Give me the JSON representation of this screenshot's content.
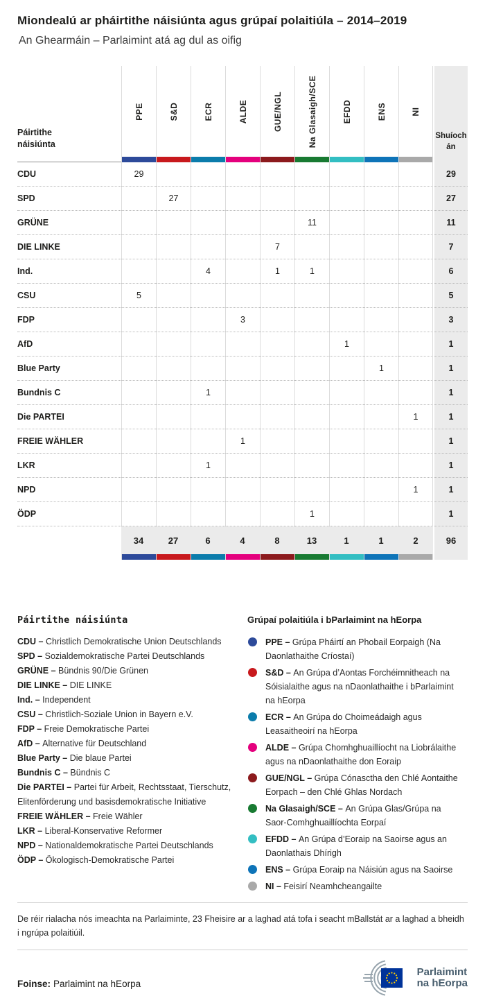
{
  "header": {
    "title": "Miondealú ar pháirtithe náisiúnta agus grúpaí polaitiúla – 2014–2019",
    "subtitle": "An Ghearmáin – Parlaimint atá ag dul as oifig"
  },
  "ui": {
    "separator": "–"
  },
  "chart_data": {
    "type": "table",
    "title": "Miondealú ar pháirtithe náisiúnta agus grúpaí polaitiúla – 2014–2019",
    "subtitle": "An Ghearmáin – Parlaimint atá ag dul as oifig",
    "row_header": "Páirtithe náisiúnta",
    "seats_header": "Shuíochán",
    "groups": [
      {
        "code": "PPE",
        "color": "#2d4a9a"
      },
      {
        "code": "S&D",
        "color": "#c8191d"
      },
      {
        "code": "ECR",
        "color": "#0b7cab"
      },
      {
        "code": "ALDE",
        "color": "#e4007d"
      },
      {
        "code": "GUE/NGL",
        "color": "#8c1a1d"
      },
      {
        "code": "Na Glasaigh/SCE",
        "color": "#187a32"
      },
      {
        "code": "EFDD",
        "color": "#33bec2"
      },
      {
        "code": "ENS",
        "color": "#0e74b8"
      },
      {
        "code": "NI",
        "color": "#a9a9a9"
      }
    ],
    "rows": [
      {
        "party": "CDU",
        "seats": {
          "PPE": 29
        },
        "total": 29
      },
      {
        "party": "SPD",
        "seats": {
          "S&D": 27
        },
        "total": 27
      },
      {
        "party": "GRÜNE",
        "seats": {
          "Na Glasaigh/SCE": 11
        },
        "total": 11
      },
      {
        "party": "DIE LINKE",
        "seats": {
          "GUE/NGL": 7
        },
        "total": 7
      },
      {
        "party": "Ind.",
        "seats": {
          "ECR": 4,
          "GUE/NGL": 1,
          "Na Glasaigh/SCE": 1
        },
        "total": 6
      },
      {
        "party": "CSU",
        "seats": {
          "PPE": 5
        },
        "total": 5
      },
      {
        "party": "FDP",
        "seats": {
          "ALDE": 3
        },
        "total": 3
      },
      {
        "party": "AfD",
        "seats": {
          "EFDD": 1
        },
        "total": 1
      },
      {
        "party": "Blue Party",
        "seats": {
          "ENS": 1
        },
        "total": 1
      },
      {
        "party": "Bundnis C",
        "seats": {
          "ECR": 1
        },
        "total": 1
      },
      {
        "party": "Die PARTEI",
        "seats": {
          "NI": 1
        },
        "total": 1
      },
      {
        "party": "FREIE WÄHLER",
        "seats": {
          "ALDE": 1
        },
        "total": 1
      },
      {
        "party": "LKR",
        "seats": {
          "ECR": 1
        },
        "total": 1
      },
      {
        "party": "NPD",
        "seats": {
          "NI": 1
        },
        "total": 1
      },
      {
        "party": "ÖDP",
        "seats": {
          "Na Glasaigh/SCE": 1
        },
        "total": 1
      }
    ],
    "totals": {
      "PPE": 34,
      "S&D": 27,
      "ECR": 6,
      "ALDE": 4,
      "GUE/NGL": 8,
      "Na Glasaigh/SCE": 13,
      "EFDD": 1,
      "ENS": 1,
      "NI": 2
    },
    "grand_total": 96
  },
  "legend_parties": {
    "heading": "Páirtithe náisiúnta",
    "items": [
      {
        "abbr": "CDU",
        "name": "Christlich Demokratische Union Deutschlands"
      },
      {
        "abbr": "SPD",
        "name": "Sozialdemokratische Partei Deutschlands"
      },
      {
        "abbr": "GRÜNE",
        "name": "Bündnis 90/Die Grünen"
      },
      {
        "abbr": "DIE LINKE",
        "name": "DIE LINKE"
      },
      {
        "abbr": "Ind.",
        "name": "Independent"
      },
      {
        "abbr": "CSU",
        "name": "Christlich-Soziale Union in Bayern e.V."
      },
      {
        "abbr": "FDP",
        "name": "Freie Demokratische Partei"
      },
      {
        "abbr": "AfD",
        "name": "Alternative für Deutschland"
      },
      {
        "abbr": "Blue Party",
        "name": "Die blaue Partei"
      },
      {
        "abbr": "Bundnis C",
        "name": "Bündnis C"
      },
      {
        "abbr": "Die PARTEI",
        "name": "Partei für Arbeit, Rechtsstaat, Tierschutz, Elitenförderung und basisdemokratische Initiative"
      },
      {
        "abbr": "FREIE WÄHLER",
        "name": "Freie Wähler"
      },
      {
        "abbr": "LKR",
        "name": "Liberal-Konservative Reformer"
      },
      {
        "abbr": "NPD",
        "name": "Nationaldemokratische Partei Deutschlands"
      },
      {
        "abbr": "ÖDP",
        "name": "Ökologisch-Demokratische Partei"
      }
    ]
  },
  "legend_groups": {
    "heading": "Grúpaí polaitiúla i bParlaimint na hEorpa",
    "items": [
      {
        "abbr": "PPE",
        "color": "#2d4a9a",
        "name": "Grúpa Pháirtí an Phobail Eorpaigh (Na Daonlathaithe Críostaí)"
      },
      {
        "abbr": "S&D",
        "color": "#c8191d",
        "name": "An Grúpa d’Aontas Forchéimnitheach na Sóisialaithe agus na nDaonlathaithe i bParlaimint na hEorpa"
      },
      {
        "abbr": "ECR",
        "color": "#0b7cab",
        "name": "An Grúpa do Choimeádaigh agus Leasaitheoirí na hEorpa"
      },
      {
        "abbr": "ALDE",
        "color": "#e4007d",
        "name": "Grúpa Chomhghuaillíocht na Liobrálaithe agus na nDaonlathaithe don Eoraip"
      },
      {
        "abbr": "GUE/NGL",
        "color": "#8c1a1d",
        "name": "Grúpa Cónasctha den Chlé Aontaithe Eorpach – den Chlé Ghlas Nordach"
      },
      {
        "abbr": "Na Glasaigh/SCE",
        "color": "#187a32",
        "name": "An Grúpa Glas/Grúpa na Saor-Comhghuaillíochta Eorpaí"
      },
      {
        "abbr": "EFDD",
        "color": "#33bec2",
        "name": "An Grúpa d’Eoraip na Saoirse agus an Daonlathais Dhírigh"
      },
      {
        "abbr": "ENS",
        "color": "#0e74b8",
        "name": "Grúpa Eoraip na Náisiún agus na Saoirse"
      },
      {
        "abbr": "NI",
        "color": "#a9a9a9",
        "name": "Feisirí Neamhcheangailte"
      }
    ]
  },
  "footer": {
    "note": "De réir rialacha nós imeachta na Parlaiminte, 23 Fheisire ar a laghad atá tofa i seacht mBallstát ar a laghad a bheidh i ngrúpa polaitiúil.",
    "source_label": "Foinse:",
    "source_value": "Parlaimint na hEorpa",
    "logo_line1": "Parlaimint",
    "logo_line2": "na hEorpa"
  }
}
